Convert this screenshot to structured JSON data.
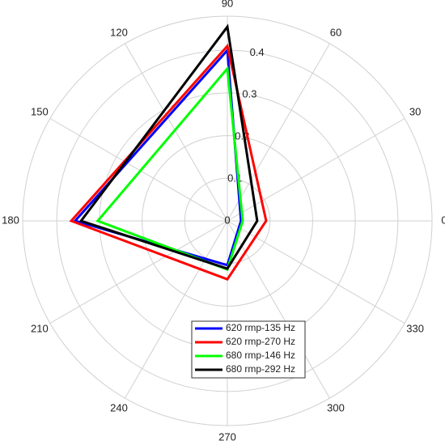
{
  "chart_data": {
    "type": "radar",
    "theta": [
      0,
      90,
      180,
      270
    ],
    "thetaticks": [
      0,
      30,
      60,
      90,
      120,
      150,
      180,
      210,
      240,
      270,
      300,
      330
    ],
    "rlim": [
      0,
      0.48
    ],
    "rticks": [
      0,
      0.1,
      0.2,
      0.3,
      0.4
    ],
    "grid": true,
    "legend": "bottom",
    "series": [
      {
        "name": "620 rmp-135 Hz",
        "color": "#0000ff",
        "values": [
          0.032,
          0.4,
          0.357,
          0.104
        ]
      },
      {
        "name": "620 rmp-270 Hz",
        "color": "#ff0000",
        "values": [
          0.091,
          0.41,
          0.366,
          0.137
        ]
      },
      {
        "name": "680 rmp-146 Hz",
        "color": "#00ff00",
        "values": [
          0.036,
          0.357,
          0.304,
          0.114
        ]
      },
      {
        "name": "680 rmp-292 Hz",
        "color": "#000000",
        "values": [
          0.07,
          0.455,
          0.343,
          0.112
        ]
      }
    ]
  }
}
